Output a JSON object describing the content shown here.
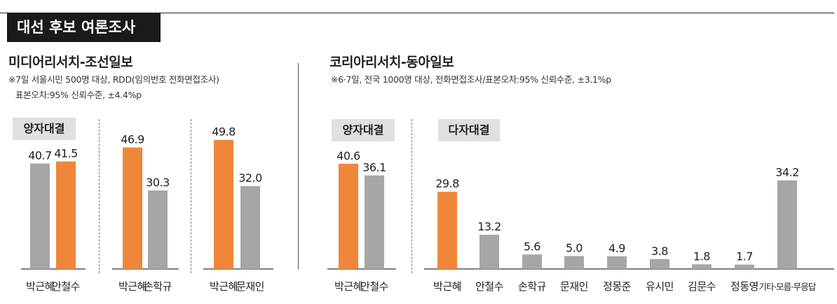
{
  "header": {
    "title": "대선 후보 여론조사"
  },
  "left_panel": {
    "source": "미디어리서치-조선일보",
    "note1": "※7일 서울시민 500명 대상, RDD(임의번호 전화면접조사)",
    "note2": "표본오차:95% 신뢰수준, ±4.4%p",
    "section_label": "양자대결"
  },
  "right_panel": {
    "source": "코리아리서치-동아일보",
    "note1": "※6·7일, 전국 1000명 대상, 전화면접조사/표본오차:95% 신뢰수준, ±3.1%p",
    "section_label_1": "양자대결",
    "section_label_2": "다자대결"
  },
  "colors": {
    "highlight": "#f0863a",
    "neutral": "#a6a6a6",
    "axis": "#333333"
  },
  "chart_data": [
    {
      "type": "bar",
      "title": "양자대결",
      "categories": [
        "박근혜",
        "안철수"
      ],
      "values": [
        40.7,
        41.5
      ],
      "highlight": [
        1
      ]
    },
    {
      "type": "bar",
      "title": "",
      "categories": [
        "박근혜",
        "손학규"
      ],
      "values": [
        46.9,
        30.3
      ],
      "highlight": [
        0
      ]
    },
    {
      "type": "bar",
      "title": "",
      "categories": [
        "박근혜",
        "문재인"
      ],
      "values": [
        49.8,
        32.0
      ],
      "highlight": [
        0
      ]
    },
    {
      "type": "bar",
      "title": "양자대결",
      "categories": [
        "박근혜",
        "안철수"
      ],
      "values": [
        40.6,
        36.1
      ],
      "highlight": [
        0
      ]
    },
    {
      "type": "bar",
      "title": "다자대결",
      "categories": [
        "박근혜",
        "안철수",
        "손학규",
        "문재인",
        "정몽준",
        "유시민",
        "김문수",
        "정동영",
        "기타·모름·무응답"
      ],
      "values": [
        29.8,
        13.2,
        5.6,
        5.0,
        4.9,
        3.8,
        1.8,
        1.7,
        34.2
      ],
      "highlight": [
        0
      ]
    }
  ]
}
